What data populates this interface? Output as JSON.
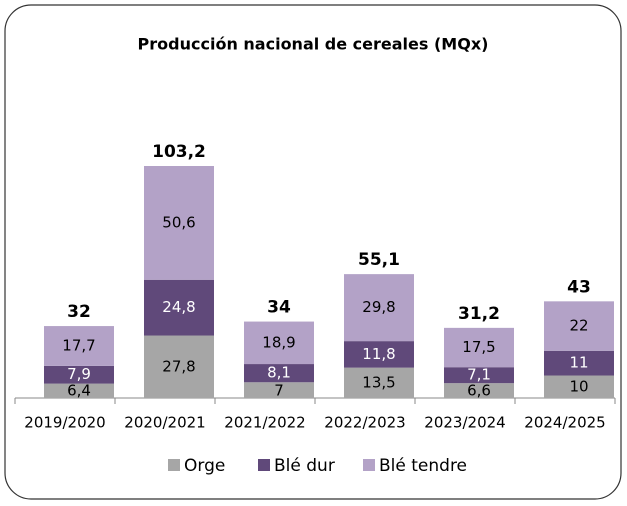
{
  "chart_data": {
    "type": "stacked_bar",
    "title": "Producción nacional de cereales (MQx)",
    "categories": [
      "2019/2020",
      "2020/2021",
      "2021/2022",
      "2022/2023",
      "2023/2024",
      "2024/2025"
    ],
    "series": [
      {
        "name": "Orge",
        "color": "#a6a6a6",
        "label_color": "#000000",
        "values": [
          6.4,
          27.8,
          7,
          13.5,
          6.6,
          10
        ],
        "value_labels": [
          "6,4",
          "27,8",
          "7",
          "13,5",
          "6,6",
          "10"
        ]
      },
      {
        "name": "Blé dur",
        "color": "#60497a",
        "label_color": "#ffffff",
        "values": [
          7.9,
          24.8,
          8.1,
          11.8,
          7.1,
          11
        ],
        "value_labels": [
          "7,9",
          "24,8",
          "8,1",
          "11,8",
          "7,1",
          "11"
        ]
      },
      {
        "name": "Blé tendre",
        "color": "#b3a2c7",
        "label_color": "#000000",
        "values": [
          17.7,
          50.6,
          18.9,
          29.8,
          17.5,
          22
        ],
        "value_labels": [
          "17,7",
          "50,6",
          "18,9",
          "29,8",
          "17,5",
          "22"
        ]
      }
    ],
    "totals": [
      32,
      103.2,
      34,
      55.1,
      31.2,
      43
    ],
    "total_labels": [
      "32",
      "103,2",
      "34",
      "55,1",
      "31,2",
      "43"
    ],
    "legend": "bottom"
  }
}
